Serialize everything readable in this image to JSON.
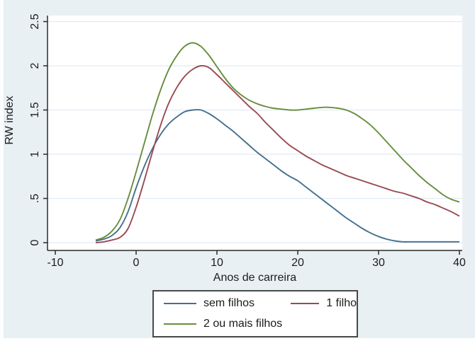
{
  "figure": {
    "background": "#e8f0f4",
    "plot_background": "#ffffff",
    "grid_color": "#e1ebf3",
    "axis_color": "#2a2a2a",
    "text_color": "#1c1c1c"
  },
  "chart_data": {
    "type": "line",
    "title": "",
    "xlabel": "Anos de carreira",
    "ylabel": "RW index",
    "xlim": [
      -10,
      40
    ],
    "ylim": [
      0,
      2.5
    ],
    "x_ticks": [
      -10,
      0,
      10,
      20,
      30,
      40
    ],
    "x_tick_labels": [
      "-10",
      "0",
      "10",
      "20",
      "30",
      "40"
    ],
    "y_ticks": [
      0,
      0.5,
      1,
      1.5,
      2,
      2.5
    ],
    "y_tick_labels": [
      "0",
      ".5",
      "1",
      "1.5",
      "2",
      "2.5"
    ],
    "grid": true,
    "legend_position": "bottom",
    "x": [
      -5,
      -4,
      -3,
      -2,
      -1,
      0,
      1,
      2,
      3,
      4,
      5,
      6,
      7,
      8,
      9,
      10,
      11,
      12,
      13,
      14,
      15,
      16,
      17,
      18,
      19,
      20,
      21,
      22,
      23,
      24,
      25,
      26,
      27,
      28,
      29,
      30,
      31,
      32,
      33,
      34,
      35,
      36,
      37,
      38,
      39,
      40
    ],
    "series": [
      {
        "name": "sem filhos",
        "color": "#44708e",
        "values": [
          0.02,
          0.04,
          0.08,
          0.17,
          0.35,
          0.62,
          0.86,
          1.06,
          1.22,
          1.34,
          1.42,
          1.48,
          1.5,
          1.5,
          1.46,
          1.4,
          1.33,
          1.26,
          1.18,
          1.1,
          1.02,
          0.95,
          0.88,
          0.81,
          0.75,
          0.7,
          0.63,
          0.56,
          0.49,
          0.42,
          0.35,
          0.28,
          0.22,
          0.16,
          0.11,
          0.07,
          0.04,
          0.02,
          0.01,
          0.01,
          0.01,
          0.01,
          0.01,
          0.01,
          0.01,
          0.01
        ]
      },
      {
        "name": "1 filho",
        "color": "#9a4a52",
        "values": [
          0.0,
          0.01,
          0.03,
          0.06,
          0.16,
          0.4,
          0.7,
          1.02,
          1.32,
          1.57,
          1.75,
          1.88,
          1.96,
          2.0,
          1.98,
          1.9,
          1.81,
          1.72,
          1.63,
          1.54,
          1.46,
          1.36,
          1.27,
          1.18,
          1.1,
          1.04,
          0.98,
          0.93,
          0.88,
          0.84,
          0.8,
          0.76,
          0.73,
          0.7,
          0.67,
          0.64,
          0.61,
          0.58,
          0.56,
          0.53,
          0.5,
          0.46,
          0.43,
          0.39,
          0.35,
          0.3
        ]
      },
      {
        "name": "2 ou mais filhos",
        "color": "#688d3d",
        "values": [
          0.03,
          0.06,
          0.13,
          0.26,
          0.5,
          0.8,
          1.12,
          1.44,
          1.72,
          1.95,
          2.11,
          2.22,
          2.26,
          2.22,
          2.12,
          1.99,
          1.86,
          1.75,
          1.67,
          1.61,
          1.57,
          1.54,
          1.52,
          1.51,
          1.5,
          1.5,
          1.51,
          1.52,
          1.53,
          1.53,
          1.52,
          1.5,
          1.46,
          1.4,
          1.33,
          1.24,
          1.14,
          1.04,
          0.94,
          0.85,
          0.76,
          0.68,
          0.61,
          0.54,
          0.49,
          0.46
        ]
      }
    ]
  },
  "legend": {
    "items": [
      {
        "label": "sem filhos",
        "color": "#44708e"
      },
      {
        "label": "1 filho",
        "color": "#9a4a52"
      },
      {
        "label": "2 ou mais filhos",
        "color": "#688d3d"
      }
    ]
  }
}
